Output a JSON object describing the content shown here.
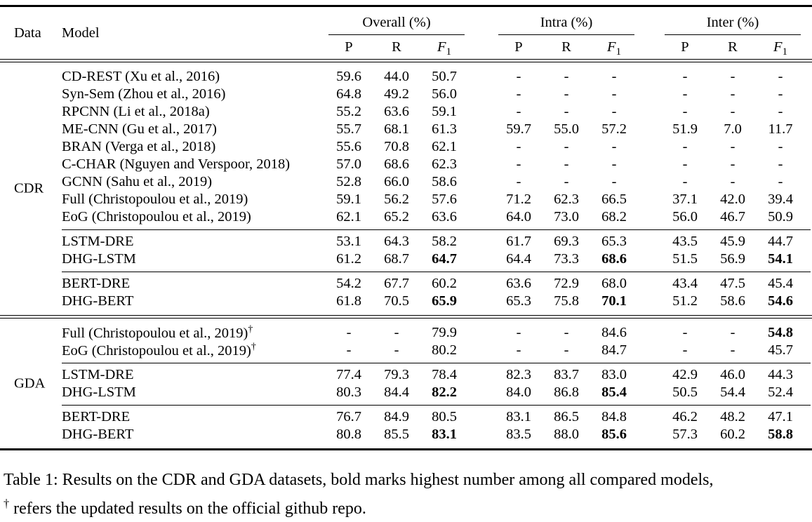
{
  "table": {
    "dagger_symbol": "†",
    "header": {
      "data_label": "Data",
      "model_label": "Model",
      "groups": [
        {
          "label": "Overall (%)"
        },
        {
          "label": "Intra (%)"
        },
        {
          "label": "Inter (%)"
        }
      ],
      "metrics": {
        "p": "P",
        "r": "R",
        "f1_base": "F",
        "f1_sub": "1"
      }
    },
    "sections": [
      {
        "dataset": "CDR",
        "subblocks": [
          {
            "rows": [
              {
                "model": "CD-REST (Xu et al., 2016)",
                "cells": [
                  "59.6",
                  "44.0",
                  "50.7",
                  "-",
                  "-",
                  "-",
                  "-",
                  "-",
                  "-"
                ]
              },
              {
                "model": "Syn-Sem (Zhou et al., 2016)",
                "cells": [
                  "64.8",
                  "49.2",
                  "56.0",
                  "-",
                  "-",
                  "-",
                  "-",
                  "-",
                  "-"
                ]
              },
              {
                "model": "RPCNN (Li et al., 2018a)",
                "cells": [
                  "55.2",
                  "63.6",
                  "59.1",
                  "-",
                  "-",
                  "-",
                  "-",
                  "-",
                  "-"
                ]
              },
              {
                "model": "ME-CNN (Gu et al., 2017)",
                "cells": [
                  "55.7",
                  "68.1",
                  "61.3",
                  "59.7",
                  "55.0",
                  "57.2",
                  "51.9",
                  "7.0",
                  "11.7"
                ]
              },
              {
                "model": "BRAN (Verga et al., 2018)",
                "cells": [
                  "55.6",
                  "70.8",
                  "62.1",
                  "-",
                  "-",
                  "-",
                  "-",
                  "-",
                  "-"
                ]
              },
              {
                "model": "C-CHAR (Nguyen and Verspoor, 2018)",
                "cells": [
                  "57.0",
                  "68.6",
                  "62.3",
                  "-",
                  "-",
                  "-",
                  "-",
                  "-",
                  "-"
                ]
              },
              {
                "model": "GCNN (Sahu et al., 2019)",
                "cells": [
                  "52.8",
                  "66.0",
                  "58.6",
                  "-",
                  "-",
                  "-",
                  "-",
                  "-",
                  "-"
                ]
              },
              {
                "model": "Full (Christopoulou et al., 2019)",
                "cells": [
                  "59.1",
                  "56.2",
                  "57.6",
                  "71.2",
                  "62.3",
                  "66.5",
                  "37.1",
                  "42.0",
                  "39.4"
                ]
              },
              {
                "model": "EoG (Christopoulou et al., 2019)",
                "cells": [
                  "62.1",
                  "65.2",
                  "63.6",
                  "64.0",
                  "73.0",
                  "68.2",
                  "56.0",
                  "46.7",
                  "50.9"
                ]
              }
            ]
          },
          {
            "rows": [
              {
                "model": "LSTM-DRE",
                "cells": [
                  "53.1",
                  "64.3",
                  "58.2",
                  "61.7",
                  "69.3",
                  "65.3",
                  "43.5",
                  "45.9",
                  "44.7"
                ]
              },
              {
                "model": "DHG-LSTM",
                "cells": [
                  "61.2",
                  "68.7",
                  {
                    "v": "64.7",
                    "b": true
                  },
                  "64.4",
                  "73.3",
                  {
                    "v": "68.6",
                    "b": true
                  },
                  "51.5",
                  "56.9",
                  {
                    "v": "54.1",
                    "b": true
                  }
                ]
              }
            ]
          },
          {
            "rows": [
              {
                "model": "BERT-DRE",
                "cells": [
                  "54.2",
                  "67.7",
                  "60.2",
                  "63.6",
                  "72.9",
                  "68.0",
                  "43.4",
                  "47.5",
                  "45.4"
                ]
              },
              {
                "model": "DHG-BERT",
                "cells": [
                  "61.8",
                  "70.5",
                  {
                    "v": "65.9",
                    "b": true
                  },
                  "65.3",
                  "75.8",
                  {
                    "v": "70.1",
                    "b": true
                  },
                  "51.2",
                  "58.6",
                  {
                    "v": "54.6",
                    "b": true
                  }
                ]
              }
            ]
          }
        ]
      },
      {
        "dataset": "GDA",
        "subblocks": [
          {
            "rows": [
              {
                "model": "Full (Christopoulou et al., 2019)",
                "dagger": true,
                "cells": [
                  "-",
                  "-",
                  "79.9",
                  "-",
                  "-",
                  "84.6",
                  "-",
                  "-",
                  {
                    "v": "54.8",
                    "b": true
                  }
                ]
              },
              {
                "model": "EoG (Christopoulou et al., 2019)",
                "dagger": true,
                "cells": [
                  "-",
                  "-",
                  "80.2",
                  "-",
                  "-",
                  "84.7",
                  "-",
                  "-",
                  "45.7"
                ]
              }
            ]
          },
          {
            "rows": [
              {
                "model": "LSTM-DRE",
                "cells": [
                  "77.4",
                  "79.3",
                  "78.4",
                  "82.3",
                  "83.7",
                  "83.0",
                  "42.9",
                  "46.0",
                  "44.3"
                ]
              },
              {
                "model": "DHG-LSTM",
                "cells": [
                  "80.3",
                  "84.4",
                  {
                    "v": "82.2",
                    "b": true
                  },
                  "84.0",
                  "86.8",
                  {
                    "v": "85.4",
                    "b": true
                  },
                  "50.5",
                  "54.4",
                  "52.4"
                ]
              }
            ]
          },
          {
            "rows": [
              {
                "model": "BERT-DRE",
                "cells": [
                  "76.7",
                  "84.9",
                  "80.5",
                  "83.1",
                  "86.5",
                  "84.8",
                  "46.2",
                  "48.2",
                  "47.1"
                ]
              },
              {
                "model": "DHG-BERT",
                "cells": [
                  "80.8",
                  "85.5",
                  {
                    "v": "83.1",
                    "b": true
                  },
                  "83.5",
                  "88.0",
                  {
                    "v": "85.6",
                    "b": true
                  },
                  "57.3",
                  "60.2",
                  {
                    "v": "58.8",
                    "b": true
                  }
                ]
              }
            ]
          }
        ]
      }
    ]
  },
  "caption": {
    "line1": "Table 1: Results on the CDR and GDA datasets, bold marks highest number among all compared models,",
    "dagger": "†",
    "line2": "refers the updated results on the official github repo."
  }
}
